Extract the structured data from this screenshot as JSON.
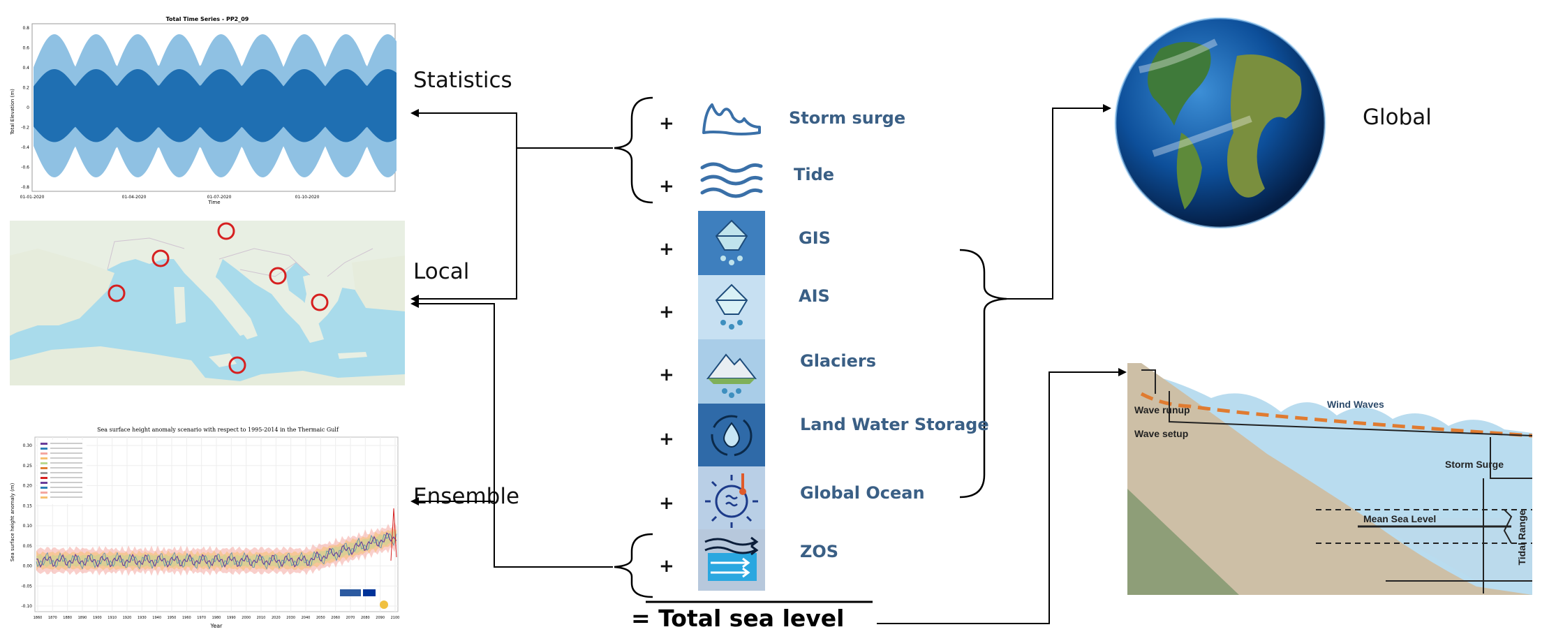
{
  "labels": {
    "statistics": "Statistics",
    "local": "Local",
    "ensemble": "Ensemble",
    "global": "Global"
  },
  "components": [
    {
      "id": "storm-surge",
      "label": "Storm surge",
      "icon": "storm-surge-wave-icon"
    },
    {
      "id": "tide",
      "label": "Tide",
      "icon": "tide-waves-icon"
    },
    {
      "id": "gis",
      "label": "GIS",
      "icon": "iceberg-melt-icon"
    },
    {
      "id": "ais",
      "label": "AIS",
      "icon": "iceberg-melt-icon"
    },
    {
      "id": "glaciers",
      "label": "Glaciers",
      "icon": "glacier-mountain-icon"
    },
    {
      "id": "land-water",
      "label": "Land Water Storage",
      "icon": "water-cycle-icon"
    },
    {
      "id": "global-ocean",
      "label": "Global Ocean",
      "icon": "ocean-thermometer-icon"
    },
    {
      "id": "zos",
      "label": "ZOS",
      "icon": "current-arrows-icon"
    }
  ],
  "plus_sign": "+",
  "total": "=  Total sea level",
  "colors": {
    "component_text": "#3a5f85",
    "tile_dark": "#2f6aa8",
    "tile_light": "#bcd8ef",
    "map_sea": "#a9dbeb",
    "map_land": "#e8efe3",
    "marker": "#d62020",
    "ts_light": "#8fc1e3",
    "ts_dark": "#1f6fb2",
    "dash_orange": "#e07b30"
  },
  "timeseries_panel": {
    "title": "Total Time Series - PP2_09",
    "ylabel": "Total Elevation (m)",
    "xlabel": "Time",
    "xticks": [
      "01-01-2020",
      "01-04-2020",
      "01-07-2020",
      "01-10-2020"
    ],
    "yticks": [
      "0.8",
      "0.6",
      "0.4",
      "0.2",
      "0",
      "-0.2",
      "-0.4",
      "-0.6",
      "-0.8"
    ]
  },
  "ensemble_panel": {
    "title": "Sea surface height anomaly scenario with respect to 1995-2014 in the Thermaic Gulf",
    "ylabel": "Sea surface height anomaly (m)",
    "xlabel": "Year",
    "yticks": [
      "0.30",
      "0.25",
      "0.20",
      "0.15",
      "0.10",
      "0.05",
      "0.00",
      "-0.05",
      "-0.10"
    ],
    "xticks": [
      "1860",
      "1870",
      "1880",
      "1890",
      "1900",
      "1910",
      "1920",
      "1930",
      "1940",
      "1950",
      "1960",
      "1970",
      "1980",
      "1990",
      "2000",
      "2010",
      "2020",
      "2030",
      "2040",
      "2050",
      "2060",
      "2070",
      "2080",
      "2090",
      "2100"
    ]
  },
  "coastal_diagram": {
    "wave_runup": "Wave runup",
    "wave_setup": "Wave setup",
    "wind_waves": "Wind Waves",
    "storm_surge": "Storm Surge",
    "mean_sea_level": "Mean Sea Level",
    "tidal_range": "Tidal Range"
  }
}
